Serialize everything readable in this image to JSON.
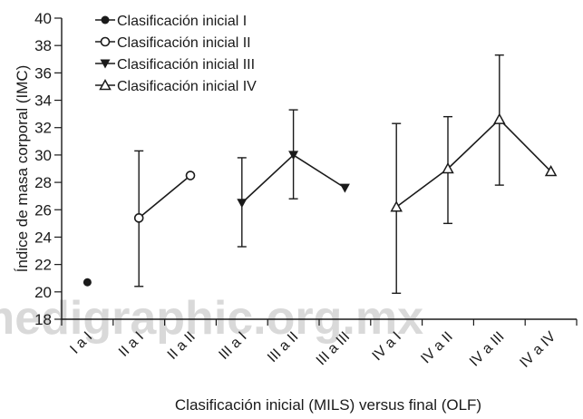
{
  "chart_data": {
    "type": "line",
    "xlabel": "Clasificación inicial (MILS) versus final (OLF)",
    "ylabel": "Índice de masa corporal (IMC)",
    "ylim": [
      18,
      40
    ],
    "yticks": [
      18,
      20,
      22,
      24,
      26,
      28,
      30,
      32,
      34,
      36,
      38,
      40
    ],
    "categories": [
      "I a I",
      "II a I",
      "II a II",
      "III a I",
      "III a II",
      "III a III",
      "IV a I",
      "IV a II",
      "IV a III",
      "IV a IV"
    ],
    "grid": false,
    "legend_position": "top-left",
    "series": [
      {
        "name": "Clasificación inicial I",
        "marker": "filled-circle",
        "x": [
          "I a I"
        ],
        "y": [
          20.7
        ],
        "err_low": [
          null
        ],
        "err_high": [
          null
        ]
      },
      {
        "name": "Clasificación inicial II",
        "marker": "open-circle",
        "x": [
          "II a I",
          "II a II"
        ],
        "y": [
          25.4,
          28.5
        ],
        "err_low": [
          20.4,
          null
        ],
        "err_high": [
          30.3,
          null
        ]
      },
      {
        "name": "Clasificación inicial III",
        "marker": "filled-triangle-down",
        "x": [
          "III a I",
          "III a II",
          "III a III"
        ],
        "y": [
          26.5,
          30.0,
          27.6
        ],
        "err_low": [
          23.3,
          26.8,
          null
        ],
        "err_high": [
          29.8,
          33.3,
          null
        ]
      },
      {
        "name": "Clasificación inicial IV",
        "marker": "open-triangle-up",
        "x": [
          "IV a I",
          "IV a II",
          "IV a III",
          "IV a IV"
        ],
        "y": [
          26.2,
          29.0,
          32.6,
          28.8
        ],
        "err_low": [
          19.9,
          25.0,
          27.8,
          null
        ],
        "err_high": [
          32.3,
          32.8,
          37.3,
          null
        ]
      }
    ]
  },
  "watermark": "medigraphic.org.mx"
}
